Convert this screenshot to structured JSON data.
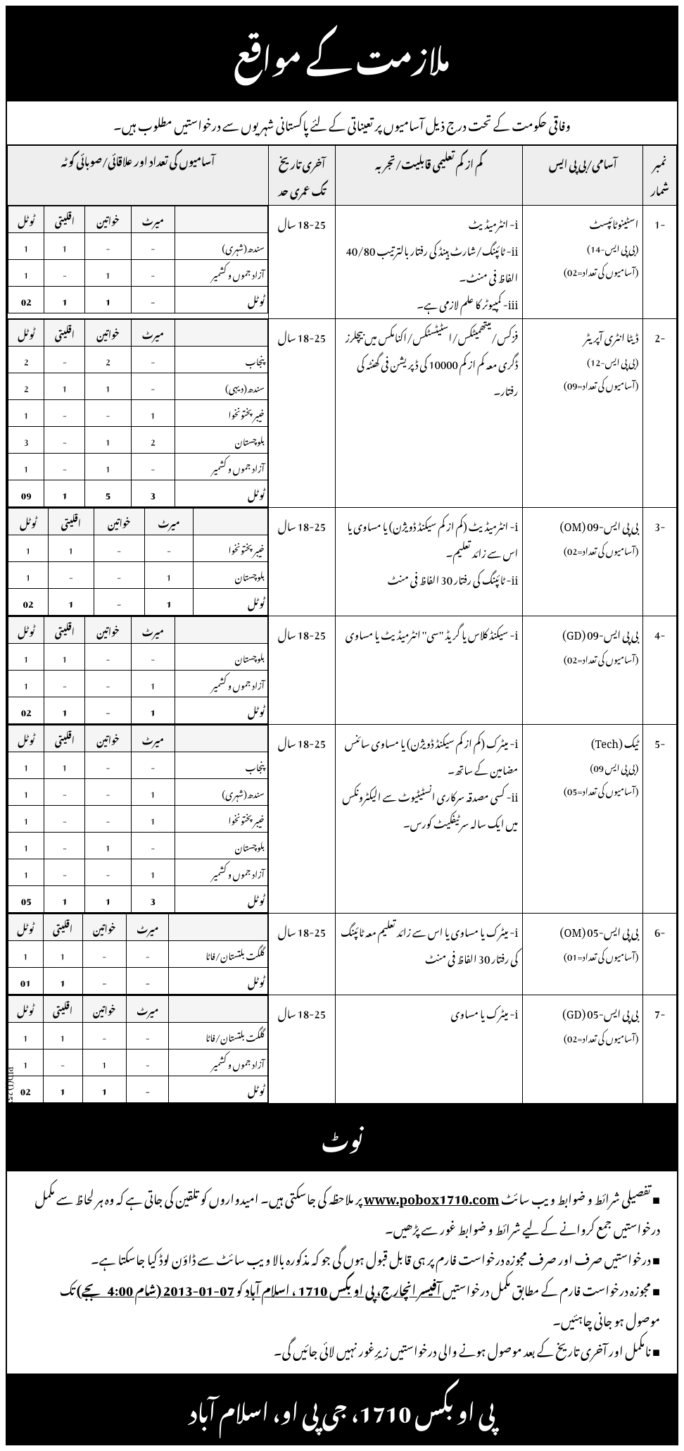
{
  "header": "ملازمت کے مواقع",
  "intro": "وفاقی حکومت کے تحت درج ذیل آسامیوں پر تعیناتی کے لئے پاکستانی شہریوں سے درخواستیں مطلوب ہیں۔",
  "columns": {
    "sr": "نمبر شمار",
    "post": "آسامی/بی پی ایس",
    "qual": "کم از کم تعلیمی قابلیت/تجربہ",
    "age": "آخری تاریخ تک عمری حد",
    "quota": "آسامیوں کی تعداد اور علاقائی/صوبائی کوٹہ"
  },
  "quota_headers": {
    "region": "",
    "merit": "میرٹ",
    "women": "خواتین",
    "minority": "اقلیتی",
    "total": "ٹوٹل"
  },
  "jobs": [
    {
      "sr": "-1",
      "post": "اسٹینوٹائپسٹ",
      "bps": "(بی پی ایس-14)",
      "count": "(آسامیوں کی تعداد=02)",
      "qual": "i- انٹرمیڈیٹ\nii- ٹائپنگ/شارٹ ہینڈ کی رفتار بالترتیب 40/80 الفاظ فی منٹ۔\niii- کمپیوٹر کا علم لازمی ہے۔",
      "age": "18-25 سال",
      "quota": [
        [
          "سندھ(شہری)",
          "-",
          "-",
          "1",
          "1"
        ],
        [
          "آزاد جموں و کشمیر",
          "-",
          "1",
          "-",
          "1"
        ]
      ],
      "quota_total": [
        "ٹوٹل",
        "-",
        "1",
        "1",
        "02"
      ]
    },
    {
      "sr": "-2",
      "post": "ڈیٹا انٹری آپریٹر",
      "bps": "(بی پی ایس-12)",
      "count": "(آسامیوں کی تعداد=09)",
      "qual": "فزکس/میتھمیٹکس/اسٹیٹسٹکس/اکنامکس میں بیچلرز ڈگری معہ کم از کم 10000 کی ڈپریشن فی گھنٹہ کی رفتار۔",
      "age": "18-25 سال",
      "quota": [
        [
          "پنجاب",
          "-",
          "2",
          "-",
          "2"
        ],
        [
          "سندھ(دیہی)",
          "-",
          "1",
          "1",
          "2"
        ],
        [
          "خیبر پختونخوا",
          "1",
          "-",
          "-",
          "1"
        ],
        [
          "بلوچستان",
          "2",
          "1",
          "-",
          "3"
        ],
        [
          "آزاد جموں و کشمیر",
          "-",
          "1",
          "-",
          "1"
        ]
      ],
      "quota_total": [
        "ٹوٹل",
        "3",
        "5",
        "1",
        "09"
      ]
    },
    {
      "sr": "-3",
      "post": "بی پی ایس-09 (OM)",
      "bps": "",
      "count": "(آسامیوں کی تعداد=02)",
      "qual": "i- انٹرمیڈیٹ (کم از کم سیکنڈ ڈویژن) یا مساوی یا اس سے زائد تعلیم۔\nii- ٹائپنگ کی رفتار 30 الفاظ فی منٹ",
      "age": "18-25 سال",
      "quota": [
        [
          "خیبر پختونخوا",
          "-",
          "-",
          "1",
          "1"
        ],
        [
          "بلوچستان",
          "1",
          "-",
          "-",
          "1"
        ]
      ],
      "quota_total": [
        "ٹوٹل",
        "1",
        "-",
        "1",
        "02"
      ]
    },
    {
      "sr": "-4",
      "post": "بی پی ایس-09 (GD)",
      "bps": "",
      "count": "(آسامیوں کی تعداد=02)",
      "qual": "i- سیکنڈ کلاس یا گریڈ ''سی'' انٹرمیڈیٹ یا مساوی",
      "age": "18-25 سال",
      "quota": [
        [
          "بلوچستان",
          "-",
          "-",
          "1",
          "1"
        ],
        [
          "آزاد جموں و کشمیر",
          "1",
          "-",
          "-",
          "1"
        ]
      ],
      "quota_total": [
        "ٹوٹل",
        "1",
        "-",
        "1",
        "02"
      ]
    },
    {
      "sr": "-5",
      "post": "ٹیک (Tech)",
      "bps": "(بی پی ایس 09)",
      "count": "(آسامیوں کی تعداد=05)",
      "qual": "i- میٹرک (کم از کم سیکنڈ ڈویژن) یا مساوی سائنس مضامین کے ساتھ۔\nii- کسی مصدقہ سرکاری انسٹیٹیوٹ سے الیکٹرونکس میں ایک سالہ سرٹیفکیٹ کورس۔",
      "age": "18-25 سال",
      "quota": [
        [
          "پنجاب",
          "-",
          "-",
          "1",
          "1"
        ],
        [
          "سندھ(شہری)",
          "1",
          "-",
          "-",
          "1"
        ],
        [
          "خیبر پختونخوا",
          "1",
          "-",
          "-",
          "1"
        ],
        [
          "بلوچستان",
          "-",
          "1",
          "-",
          "1"
        ],
        [
          "آزاد جموں و کشمیر",
          "1",
          "-",
          "-",
          "1"
        ]
      ],
      "quota_total": [
        "ٹوٹل",
        "3",
        "1",
        "1",
        "05"
      ]
    },
    {
      "sr": "-6",
      "post": "بی پی ایس-05 (OM)",
      "bps": "",
      "count": "(آسامیوں کی تعداد=01)",
      "qual": "i- میٹرک یا مساوی یا اس سے زائد تعلیم معہ ٹائپنگ کی رفتار 30 الفاظ فی منٹ",
      "age": "18-25 سال",
      "quota": [
        [
          "گلگت بلتستان/فاٹا",
          "-",
          "-",
          "1",
          "1"
        ]
      ],
      "quota_total": [
        "ٹوٹل",
        "-",
        "-",
        "1",
        "01"
      ]
    },
    {
      "sr": "-7",
      "post": "بی پی ایس-05 (GD)",
      "bps": "",
      "count": "(آسامیوں کی تعداد=02)",
      "qual": "i- میٹرک یا مساوی",
      "age": "18-25 سال",
      "quota": [
        [
          "گلگت بلتستان/فاٹا",
          "-",
          "-",
          "1",
          "1"
        ],
        [
          "آزاد جموں و کشمیر",
          "-",
          "1",
          "-",
          "1"
        ]
      ],
      "quota_total": [
        "ٹوٹل",
        "-",
        "1",
        "1",
        "02"
      ]
    }
  ],
  "note_title": "نوٹ",
  "notes": [
    "تفصیلی شرائط و ضوابط ویب سائٹ <span class='underline'>www.pobox1710.com</span> پر ملاحظہ کی جاسکتی ہیں۔ امیدواروں کو تلقین کی جاتی ہے کہ وہ ہر لحاظ سے مکمل درخواستیں جمع کروانے کے لیے شرائط و ضوابط غور سے پڑھیں۔",
    "درخواستیں صرف اور صرف مجوزہ درخواست فارم پر ہی قابل قبول ہوں گی جو کہ مذکورہ بالا ویب سائٹ سے ڈاؤن لوڈ کیا جاسکتا ہے۔",
    "مجوزہ درخواست فارم کے مطابق مکمل درخواستیں <span class='underline'>آفیسر انچارج، پی او بکس 1710 ، اسلام آباد</span> کو <span class='underline'>07-01-2013 (شام 4:00 بجے)</span> تک موصول ہو جانی چاہئیں۔",
    "نامکمل اور آخری تاریخ کے بعد موصول ہونے والی درخواستیں زیرِغور نہیں لائی جائیں گی۔"
  ],
  "footer": "پی او بکس 1710، جی پی او، اسلام آباد",
  "pid": "PID(I) 2570/12"
}
